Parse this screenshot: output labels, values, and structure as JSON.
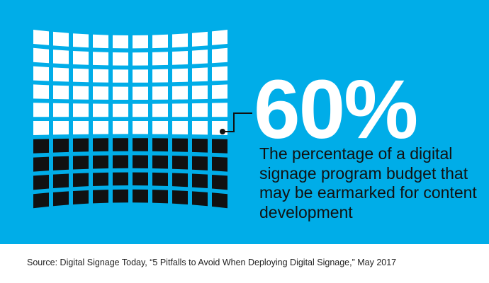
{
  "chart_data": {
    "type": "waffle",
    "value": 60,
    "unit": "%",
    "display_value": "60%",
    "rows": 10,
    "columns": 10,
    "filled_rows_from_top": 6,
    "caption": "The percentage of a digital signage program budget that may be earmarked for content development"
  },
  "source": "Source: Digital Signage Today, “5 Pitfalls to Avoid When Deploying Digital Signage,” May 2017",
  "colors": {
    "background": "#00ade8",
    "highlight_cell": "#ffffff",
    "remaining_cell": "#111111",
    "connector": "#111111"
  }
}
